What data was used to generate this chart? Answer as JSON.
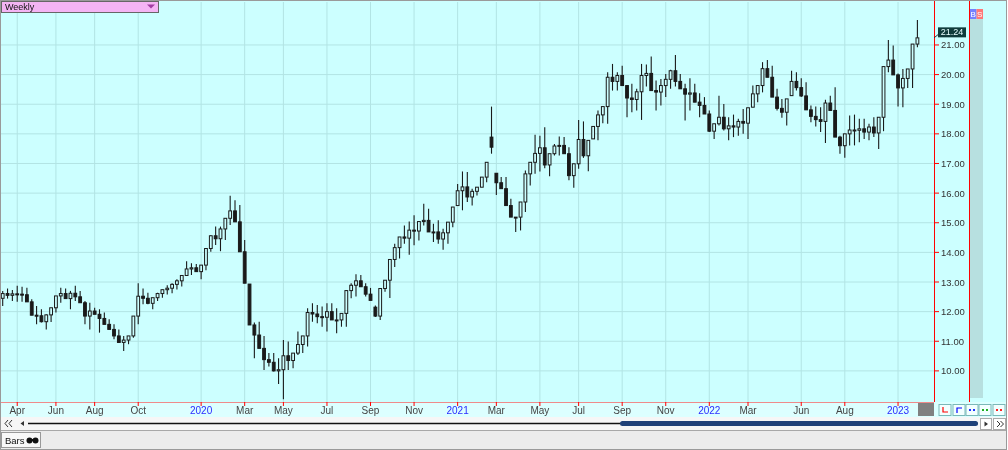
{
  "chart_data": {
    "type": "candlestick",
    "title": "Weekly",
    "categories": [
      null,
      null,
      null,
      "Apr",
      null,
      null,
      null,
      null,
      null,
      null,
      null,
      "Jun",
      null,
      null,
      null,
      null,
      null,
      null,
      null,
      "Aug",
      null,
      null,
      null,
      null,
      null,
      null,
      null,
      null,
      "Oct",
      null,
      null,
      null,
      null,
      null,
      null,
      null,
      null,
      null,
      null,
      null,
      null,
      "2020",
      null,
      null,
      null,
      null,
      null,
      null,
      null,
      null,
      "Mar",
      null,
      null,
      null,
      null,
      null,
      null,
      null,
      "May",
      null,
      null,
      null,
      null,
      null,
      null,
      null,
      null,
      "Jul",
      null,
      null,
      null,
      null,
      null,
      null,
      null,
      null,
      "Sep",
      null,
      null,
      null,
      null,
      null,
      null,
      null,
      null,
      "Nov",
      null,
      null,
      null,
      null,
      null,
      null,
      null,
      null,
      "2021",
      null,
      null,
      null,
      null,
      null,
      null,
      null,
      "Mar",
      null,
      null,
      null,
      null,
      null,
      null,
      null,
      null,
      "May",
      null,
      null,
      null,
      null,
      null,
      null,
      null,
      "Jul",
      null,
      null,
      null,
      null,
      null,
      null,
      null,
      null,
      "Sep",
      null,
      null,
      null,
      null,
      null,
      null,
      null,
      null,
      "Nov",
      null,
      null,
      null,
      null,
      null,
      null,
      null,
      null,
      "2022",
      null,
      null,
      null,
      null,
      null,
      null,
      null,
      "Mar",
      null,
      null,
      null,
      null,
      null,
      null,
      null,
      null,
      null,
      null,
      "Jun",
      null,
      null,
      null,
      null,
      null,
      null,
      null,
      null,
      "Aug",
      null,
      null,
      null,
      null,
      null,
      null,
      null,
      null,
      null,
      null,
      "2023",
      null,
      null,
      null,
      null
    ],
    "ohlc": [
      [
        12.45,
        12.7,
        12.19,
        12.61
      ],
      [
        12.61,
        12.78,
        12.44,
        12.55
      ],
      [
        12.55,
        12.73,
        12.36,
        12.6
      ],
      [
        12.6,
        12.87,
        12.33,
        12.59
      ],
      [
        12.59,
        12.84,
        12.33,
        12.57
      ],
      [
        12.57,
        12.81,
        12.33,
        12.33
      ],
      [
        12.33,
        12.42,
        11.88,
        11.88
      ],
      [
        11.88,
        12.19,
        11.57,
        11.86
      ],
      [
        11.86,
        12.08,
        11.63,
        11.66
      ],
      [
        11.66,
        11.91,
        11.4,
        11.89
      ],
      [
        11.89,
        12.13,
        11.65,
        12.13
      ],
      [
        12.13,
        12.53,
        11.97,
        12.53
      ],
      [
        12.53,
        12.81,
        12.3,
        12.61
      ],
      [
        12.61,
        12.78,
        12.44,
        12.44
      ],
      [
        12.44,
        12.7,
        12.08,
        12.62
      ],
      [
        12.62,
        12.87,
        12.36,
        12.5
      ],
      [
        12.5,
        12.7,
        12.3,
        12.3
      ],
      [
        12.3,
        12.36,
        11.57,
        11.85
      ],
      [
        11.85,
        12.3,
        11.4,
        12.02
      ],
      [
        12.02,
        12.13,
        11.91,
        11.91
      ],
      [
        11.91,
        12.08,
        11.29,
        11.77
      ],
      [
        11.77,
        11.97,
        11.57,
        11.57
      ],
      [
        11.57,
        11.74,
        11.4,
        11.4
      ],
      [
        11.4,
        11.57,
        11.07,
        11.18
      ],
      [
        11.18,
        11.4,
        10.96,
        10.96
      ],
      [
        10.96,
        11.18,
        10.67,
        11.04
      ],
      [
        11.04,
        11.18,
        10.9,
        11.18
      ],
      [
        11.18,
        11.85,
        11.12,
        11.85
      ],
      [
        11.85,
        12.96,
        11.57,
        12.52
      ],
      [
        12.52,
        12.78,
        12.25,
        12.45
      ],
      [
        12.45,
        12.64,
        12.25,
        12.28
      ],
      [
        12.28,
        12.47,
        12.08,
        12.47
      ],
      [
        12.47,
        12.64,
        12.36,
        12.61
      ],
      [
        12.61,
        12.75,
        12.47,
        12.74
      ],
      [
        12.74,
        12.89,
        12.58,
        12.79
      ],
      [
        12.79,
        12.96,
        12.62,
        12.92
      ],
      [
        12.92,
        13.09,
        12.75,
        13.04
      ],
      [
        13.04,
        13.22,
        12.85,
        13.22
      ],
      [
        13.22,
        13.7,
        13.2,
        13.44
      ],
      [
        13.44,
        13.63,
        13.24,
        13.48
      ],
      [
        13.48,
        13.61,
        13.35,
        13.35
      ],
      [
        13.35,
        13.57,
        13.09,
        13.57
      ],
      [
        13.57,
        14.13,
        13.4,
        14.13
      ],
      [
        14.13,
        14.58,
        14.02,
        14.56
      ],
      [
        14.56,
        14.87,
        14.25,
        14.46
      ],
      [
        14.46,
        14.87,
        14.04,
        14.79
      ],
      [
        14.79,
        15.15,
        14.42,
        15.15
      ],
      [
        15.15,
        15.91,
        14.92,
        15.4
      ],
      [
        15.4,
        15.76,
        15.03,
        15.03
      ],
      [
        15.03,
        15.6,
        14.02,
        14.02
      ],
      [
        14.02,
        14.42,
        12.96,
        12.96
      ],
      [
        12.93,
        12.93,
        11.55,
        11.55
      ],
      [
        11.55,
        11.63,
        10.43,
        11.21
      ],
      [
        11.21,
        11.66,
        10.76,
        10.76
      ],
      [
        10.76,
        11.18,
        10.03,
        10.38
      ],
      [
        10.38,
        10.6,
        10.15,
        10.29
      ],
      [
        10.29,
        10.6,
        9.98,
        10.0
      ],
      [
        10.0,
        10.43,
        9.56,
        10.04
      ],
      [
        10.04,
        11.04,
        9.04,
        10.51
      ],
      [
        10.51,
        10.99,
        10.03,
        10.35
      ],
      [
        10.35,
        10.6,
        10.09,
        10.6
      ],
      [
        10.6,
        11.33,
        10.54,
        10.89
      ],
      [
        10.89,
        11.18,
        10.6,
        11.18
      ],
      [
        11.18,
        12.11,
        10.82,
        11.97
      ],
      [
        11.97,
        12.28,
        11.66,
        11.92
      ],
      [
        11.92,
        12.22,
        11.61,
        11.83
      ],
      [
        11.83,
        12.17,
        11.49,
        11.81
      ],
      [
        11.81,
        12.28,
        11.33,
        12.0
      ],
      [
        12.0,
        12.28,
        11.72,
        11.72
      ],
      [
        11.72,
        12.11,
        11.27,
        11.72
      ],
      [
        11.72,
        11.94,
        11.49,
        11.94
      ],
      [
        11.94,
        12.73,
        11.49,
        12.71
      ],
      [
        12.71,
        12.96,
        12.45,
        12.89
      ],
      [
        12.89,
        13.26,
        12.51,
        13.04
      ],
      [
        13.04,
        13.24,
        12.84,
        12.84
      ],
      [
        12.84,
        12.96,
        12.51,
        12.59
      ],
      [
        12.59,
        12.8,
        12.38,
        12.38
      ],
      [
        12.15,
        12.21,
        11.82,
        11.85
      ],
      [
        11.85,
        12.78,
        11.72,
        12.78
      ],
      [
        12.78,
        13.06,
        12.67,
        13.06
      ],
      [
        13.06,
        13.76,
        12.46,
        13.76
      ],
      [
        13.76,
        14.29,
        13.51,
        14.16
      ],
      [
        14.16,
        14.52,
        13.79,
        14.52
      ],
      [
        14.52,
        14.91,
        14.29,
        14.48
      ],
      [
        14.48,
        15.04,
        13.92,
        14.75
      ],
      [
        14.75,
        15.25,
        14.24,
        14.72
      ],
      [
        14.72,
        15.04,
        14.4,
        15.04
      ],
      [
        15.04,
        15.64,
        14.91,
        15.08
      ],
      [
        15.08,
        15.47,
        14.69,
        14.69
      ],
      [
        14.69,
        14.97,
        14.35,
        14.69
      ],
      [
        14.69,
        15.08,
        14.29,
        14.45
      ],
      [
        14.45,
        14.8,
        14.09,
        14.66
      ],
      [
        14.66,
        15.02,
        14.29,
        15.02
      ],
      [
        15.02,
        15.53,
        14.85,
        15.53
      ],
      [
        15.58,
        16.31,
        15.58,
        16.08
      ],
      [
        16.08,
        16.73,
        15.42,
        16.21
      ],
      [
        16.21,
        16.71,
        15.7,
        15.87
      ],
      [
        15.87,
        16.15,
        15.58,
        16.06
      ],
      [
        16.06,
        16.2,
        15.92,
        16.2
      ],
      [
        16.2,
        16.54,
        16.2,
        16.54
      ],
      [
        16.54,
        17.04,
        16.37,
        17.04
      ],
      [
        17.89,
        18.92,
        17.33,
        17.55
      ],
      [
        16.67,
        16.67,
        15.94,
        16.35
      ],
      [
        16.35,
        16.54,
        16.15,
        16.15
      ],
      [
        16.15,
        16.54,
        15.58,
        15.58
      ],
      [
        15.58,
        15.81,
        15.19,
        15.19
      ],
      [
        15.19,
        15.19,
        14.69,
        15.19
      ],
      [
        15.19,
        15.7,
        14.74,
        15.7
      ],
      [
        15.7,
        16.76,
        15.36,
        16.65
      ],
      [
        16.65,
        17.04,
        16.26,
        17.04
      ],
      [
        17.04,
        17.97,
        16.65,
        17.34
      ],
      [
        17.34,
        17.94,
        16.73,
        17.53
      ],
      [
        17.53,
        18.22,
        16.84,
        16.95
      ],
      [
        16.95,
        17.33,
        16.57,
        17.33
      ],
      [
        17.33,
        17.66,
        17.27,
        17.59
      ],
      [
        17.59,
        17.91,
        17.27,
        17.61
      ],
      [
        17.61,
        17.89,
        17.33,
        17.33
      ],
      [
        17.33,
        17.55,
        16.43,
        16.59
      ],
      [
        16.59,
        16.99,
        16.18,
        16.99
      ],
      [
        16.99,
        18.47,
        16.82,
        17.81
      ],
      [
        17.81,
        18.42,
        17.19,
        17.26
      ],
      [
        17.26,
        17.78,
        16.74,
        17.78
      ],
      [
        17.83,
        18.25,
        17.83,
        18.25
      ],
      [
        18.25,
        18.79,
        17.78,
        18.64
      ],
      [
        18.64,
        18.92,
        18.36,
        18.92
      ],
      [
        18.92,
        20.08,
        18.34,
        19.91
      ],
      [
        19.91,
        20.36,
        19.46,
        19.77
      ],
      [
        19.77,
        20.08,
        19.46,
        19.97
      ],
      [
        19.97,
        20.3,
        19.63,
        19.63
      ],
      [
        19.63,
        19.63,
        18.56,
        19.21
      ],
      [
        19.21,
        19.69,
        18.73,
        19.16
      ],
      [
        19.16,
        19.52,
        18.79,
        19.42
      ],
      [
        19.42,
        20.36,
        18.47,
        19.97
      ],
      [
        19.97,
        20.34,
        19.6,
        20.04
      ],
      [
        20.04,
        20.61,
        19.46,
        19.46
      ],
      [
        19.46,
        19.8,
        18.79,
        19.41
      ],
      [
        19.41,
        19.85,
        18.96,
        19.63
      ],
      [
        19.63,
        20.02,
        19.24,
        19.84
      ],
      [
        19.84,
        20.16,
        19.52,
        20.13
      ],
      [
        20.13,
        20.66,
        19.6,
        19.77
      ],
      [
        19.77,
        20.02,
        19.52,
        19.52
      ],
      [
        19.52,
        19.69,
        18.45,
        19.34
      ],
      [
        19.34,
        19.88,
        18.79,
        19.38
      ],
      [
        19.38,
        19.69,
        19.07,
        19.07
      ],
      [
        19.07,
        19.37,
        18.56,
        18.96
      ],
      [
        18.96,
        19.24,
        18.67,
        18.67
      ],
      [
        18.67,
        18.79,
        18.06,
        18.09
      ],
      [
        18.09,
        18.34,
        17.83,
        18.34
      ],
      [
        18.34,
        19.29,
        18.28,
        18.56
      ],
      [
        18.56,
        19.01,
        18.11,
        18.17
      ],
      [
        18.17,
        18.56,
        17.78,
        18.27
      ],
      [
        18.27,
        18.65,
        17.89,
        18.23
      ],
      [
        18.23,
        18.51,
        17.94,
        18.42
      ],
      [
        18.42,
        18.84,
        18.0,
        18.36
      ],
      [
        18.36,
        18.88,
        17.83,
        18.88
      ],
      [
        18.9,
        19.63,
        18.9,
        19.35
      ],
      [
        19.35,
        19.63,
        19.07,
        19.63
      ],
      [
        19.63,
        20.42,
        19.4,
        20.2
      ],
      [
        20.2,
        20.49,
        19.91,
        19.91
      ],
      [
        19.91,
        20.3,
        19.24,
        19.24
      ],
      [
        19.24,
        19.52,
        18.79,
        18.86
      ],
      [
        18.86,
        19.18,
        18.54,
        18.73
      ],
      [
        18.73,
        19.18,
        18.28,
        19.18
      ],
      [
        19.29,
        20.13,
        19.29,
        19.77
      ],
      [
        19.77,
        20.08,
        19.46,
        19.56
      ],
      [
        19.56,
        19.88,
        19.24,
        19.28
      ],
      [
        19.28,
        19.74,
        18.81,
        18.81
      ],
      [
        18.81,
        18.96,
        18.39,
        18.59
      ],
      [
        18.59,
        18.92,
        18.25,
        18.48
      ],
      [
        18.48,
        18.9,
        18.06,
        18.42
      ],
      [
        18.42,
        19.15,
        17.69,
        19.04
      ],
      [
        19.04,
        19.29,
        18.79,
        18.79
      ],
      [
        18.79,
        19.57,
        17.89,
        17.89
      ],
      [
        17.89,
        17.94,
        17.33,
        17.6
      ],
      [
        17.6,
        18.0,
        17.19,
        18.0
      ],
      [
        18.0,
        18.62,
        17.61,
        18.13
      ],
      [
        18.13,
        18.65,
        17.61,
        18.12
      ],
      [
        18.12,
        18.51,
        17.72,
        18.17
      ],
      [
        18.17,
        18.51,
        17.83,
        18.06
      ],
      [
        18.06,
        18.34,
        17.78,
        18.23
      ],
      [
        18.23,
        18.56,
        17.89,
        18.03
      ],
      [
        18.03,
        18.56,
        17.49,
        18.56
      ],
      [
        18.56,
        20.27,
        18.09,
        20.27
      ],
      [
        20.27,
        21.17,
        20.08,
        20.49
      ],
      [
        20.49,
        20.98,
        19.99,
        19.99
      ],
      [
        19.99,
        20.04,
        18.92,
        19.55
      ],
      [
        19.55,
        20.19,
        18.9,
        19.87
      ],
      [
        19.87,
        20.19,
        19.55,
        20.19
      ],
      [
        20.19,
        21.03,
        19.55,
        21.03
      ],
      [
        21.03,
        21.84,
        20.92,
        21.24
      ]
    ],
    "color": "#1a1a1a",
    "ylim": [
      8.95,
      22.45
    ],
    "yticks": [
      {
        "value": 10,
        "label": "10.00"
      },
      {
        "value": 11,
        "label": "11.00"
      },
      {
        "value": 12,
        "label": "12.00"
      },
      {
        "value": 13,
        "label": "13.00"
      },
      {
        "value": 14,
        "label": "14.00"
      },
      {
        "value": 15,
        "label": "15.00"
      },
      {
        "value": 16,
        "label": "16.00"
      },
      {
        "value": 17,
        "label": "17.00"
      },
      {
        "value": 18,
        "label": "18.00"
      },
      {
        "value": 19,
        "label": "19.00"
      },
      {
        "value": 20,
        "label": "20.00"
      },
      {
        "value": 21,
        "label": "21.00"
      }
    ],
    "grid": true,
    "annotations": [
      "B",
      "S",
      "Bars",
      "21.24"
    ]
  }
}
